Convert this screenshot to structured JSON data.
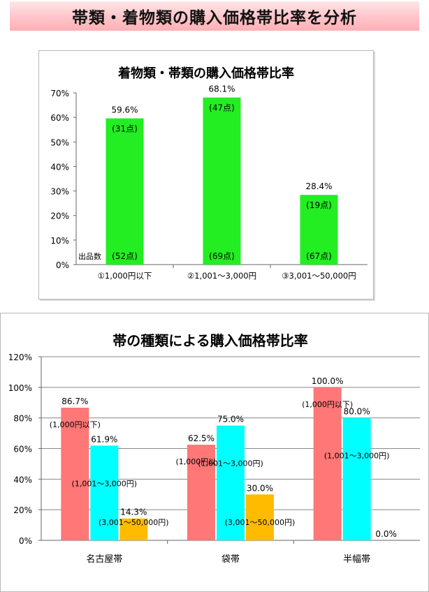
{
  "page_title": "帯類・着物類の購入価格帯比率を分析",
  "colors": {
    "bar_green": "#22ee22",
    "bar_pink": "#ff7777",
    "bar_cyan": "#00ffff",
    "bar_orange": "#ffbb00"
  },
  "chart_data": [
    {
      "type": "bar",
      "title": "着物類・帯類の購入価格帯比率",
      "categories": [
        "①1,000円以下",
        "②1,001～3,000円",
        "③3,001～50,000円"
      ],
      "values": [
        59.6,
        68.1,
        28.4
      ],
      "value_labels": [
        "59.6%",
        "68.1%",
        "28.4%"
      ],
      "count_labels": [
        "(31点)",
        "(47点)",
        "(19点)"
      ],
      "total_label": "出品数",
      "total_counts": [
        "(52点)",
        "(69点)",
        "(67点)"
      ],
      "ylim": [
        0,
        70
      ],
      "yticks": [
        "0%",
        "10%",
        "20%",
        "30%",
        "40%",
        "50%",
        "60%",
        "70%"
      ],
      "grid": false,
      "legend": "none"
    },
    {
      "type": "bar",
      "title": "帯の種類による購入価格帯比率",
      "categories": [
        "名古屋帯",
        "袋帯",
        "半幅帯"
      ],
      "series": [
        {
          "label": "(1,000円以下)",
          "values": [
            86.7,
            62.5,
            100.0
          ],
          "value_labels": [
            "86.7%",
            "62.5%",
            "100.0%"
          ]
        },
        {
          "label": "(1,001～3,000円)",
          "values": [
            61.9,
            75.0,
            80.0
          ],
          "value_labels": [
            "61.9%",
            "75.0%",
            "80.0%"
          ]
        },
        {
          "label": "(3,001～50,000円)",
          "values": [
            14.3,
            30.0,
            0.0
          ],
          "value_labels": [
            "14.3%",
            "30.0%",
            "0.0%"
          ]
        }
      ],
      "ylim": [
        0,
        120
      ],
      "yticks": [
        "0%",
        "20%",
        "40%",
        "60%",
        "80%",
        "100%",
        "120%"
      ],
      "grid": true,
      "legend": "none"
    }
  ]
}
